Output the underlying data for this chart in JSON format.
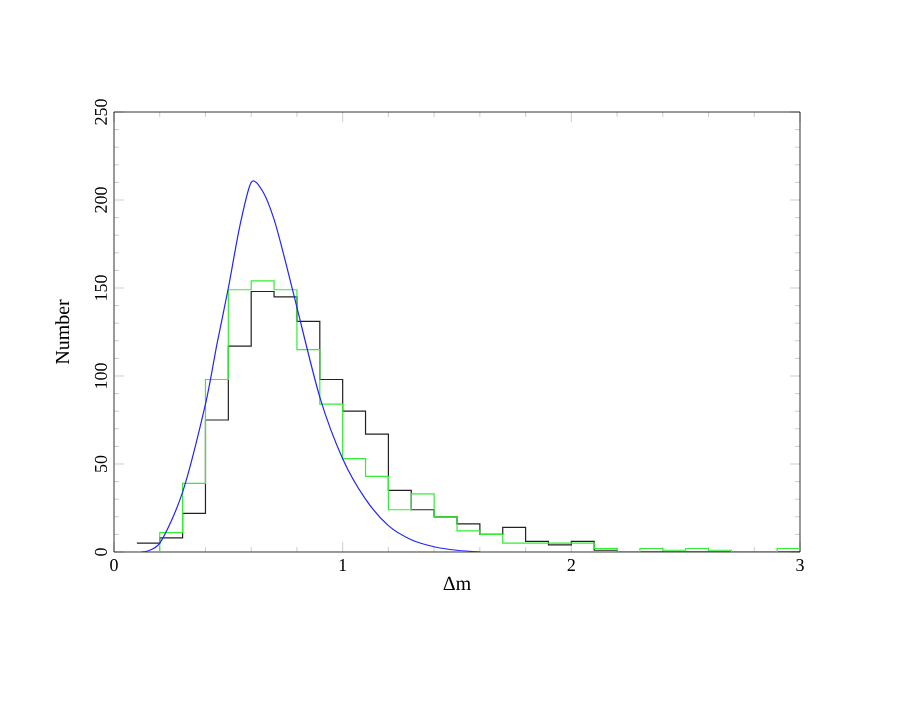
{
  "chart_data": {
    "type": "histogram",
    "xlabel": "Δm",
    "ylabel": "Number",
    "xlim": [
      0,
      3
    ],
    "xticks": [
      0,
      1,
      2,
      3
    ],
    "ylim": [
      0,
      250
    ],
    "yticks": [
      0,
      50,
      100,
      150,
      200,
      250
    ],
    "bins": [
      0.1,
      0.2,
      0.3,
      0.4,
      0.5,
      0.6,
      0.7,
      0.8,
      0.9,
      1.0,
      1.1,
      1.2,
      1.3,
      1.4,
      1.5,
      1.6,
      1.7,
      1.8,
      1.9,
      2.0,
      2.1,
      2.2,
      2.3,
      2.4,
      2.5,
      2.6,
      2.7,
      2.8,
      2.9,
      3.0
    ],
    "series": [
      {
        "color": "#222222",
        "values": [
          5,
          8,
          22,
          75,
          117,
          148,
          145,
          131,
          98,
          80,
          67,
          35,
          24,
          20,
          16,
          10,
          14,
          6,
          4,
          6,
          1,
          0,
          0,
          0,
          0,
          0,
          0,
          0,
          0
        ]
      },
      {
        "color": "#33ee33",
        "values": [
          0,
          11,
          39,
          98,
          149,
          154,
          149,
          115,
          84,
          53,
          43,
          24,
          33,
          20,
          12,
          10,
          5,
          5,
          5,
          5,
          2,
          0,
          2,
          1,
          2,
          1,
          0,
          0,
          2
        ]
      },
      {
        "type": "line",
        "color": "#2222ff",
        "x": [
          0.12,
          0.2,
          0.3,
          0.4,
          0.45,
          0.5,
          0.55,
          0.6,
          0.65,
          0.7,
          0.75,
          0.8,
          0.9,
          1.0,
          1.1,
          1.2,
          1.3,
          1.4,
          1.5,
          1.6
        ],
        "values": [
          0,
          5,
          34,
          84,
          118,
          150,
          185,
          210,
          205,
          189,
          165,
          139,
          88,
          53,
          30,
          15,
          7,
          3,
          1,
          0
        ]
      }
    ]
  }
}
